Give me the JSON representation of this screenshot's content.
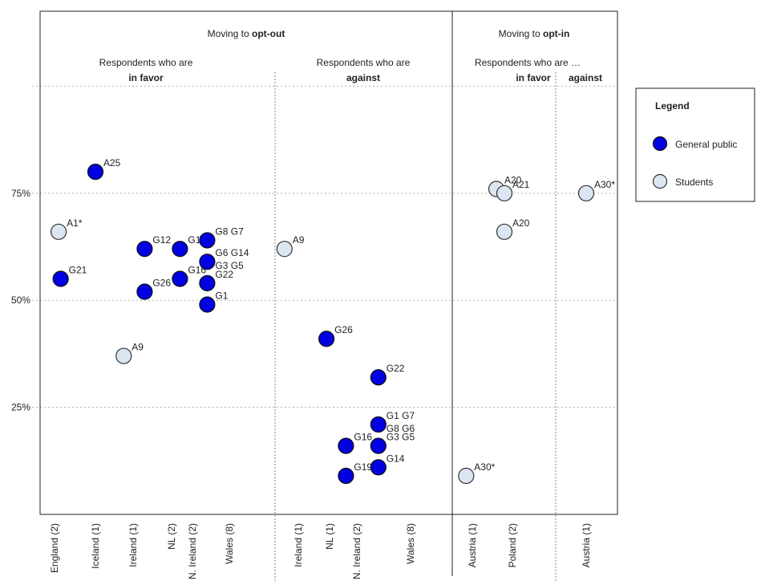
{
  "chart_data": {
    "type": "scatter",
    "y_ticks": [
      "25%",
      "50%",
      "75%"
    ],
    "ylim": [
      0,
      100
    ],
    "grid": true,
    "sections": [
      {
        "title_prefix": "Moving to ",
        "title_bold": "opt-out",
        "groups": [
          {
            "line1": "Respondents who are",
            "line2": "in favor"
          },
          {
            "line1": "Respondents who are",
            "line2": "against"
          }
        ]
      },
      {
        "title_prefix": "Moving to ",
        "title_bold": "opt-in",
        "groups": [
          {
            "line1": "Respondents who are …",
            "line2": "in favor"
          },
          {
            "line1": "",
            "line2": "against"
          }
        ]
      }
    ],
    "categories": [
      "England (2)",
      "Iceland (1)",
      "Ireland (1)",
      "NL (2)",
      "N. Ireland (2)",
      "Wales (8)",
      "Ireland (1)",
      "NL (1)",
      "N. Ireland (2)",
      "Wales (8)",
      "Austria (1)",
      "Poland (2)",
      "Austria (1)"
    ],
    "series": [
      {
        "name": "General public",
        "points": [
          {
            "pos": 0.15,
            "y": 55,
            "label": "G21"
          },
          {
            "pos": 1.0,
            "y": 80,
            "label": "A25"
          },
          {
            "pos": 2.3,
            "y": 62,
            "label": "G12"
          },
          {
            "pos": 2.3,
            "y": 52,
            "label": "G26"
          },
          {
            "pos": 3.4,
            "y": 62,
            "label": "G18"
          },
          {
            "pos": 3.4,
            "y": 55,
            "label": "G16"
          },
          {
            "pos": 4.4,
            "y": 64,
            "label": "G8 G7"
          },
          {
            "pos": 4.4,
            "y": 59,
            "label": "G6 G14 / G3 G5"
          },
          {
            "pos": 4.4,
            "y": 54,
            "label": "G22"
          },
          {
            "pos": 4.4,
            "y": 49,
            "label": "G1"
          },
          {
            "pos": 6.9,
            "y": 41,
            "label": "G26"
          },
          {
            "pos": 7.6,
            "y": 16,
            "label": "G16"
          },
          {
            "pos": 7.6,
            "y": 9,
            "label": "G19"
          },
          {
            "pos": 8.4,
            "y": 32,
            "label": "G22"
          },
          {
            "pos": 8.4,
            "y": 21,
            "label": "G1 G7 / G8 G6"
          },
          {
            "pos": 8.4,
            "y": 16,
            "label": "G3 G5"
          },
          {
            "pos": 8.4,
            "y": 11,
            "label": "G14"
          }
        ]
      },
      {
        "name": "Students",
        "points": [
          {
            "pos": 0.1,
            "y": 66,
            "label": "A1*"
          },
          {
            "pos": 1.75,
            "y": 37,
            "label": "A9"
          },
          {
            "pos": 5.8,
            "y": 62,
            "label": "A9"
          },
          {
            "pos": 9.9,
            "y": 9,
            "label": "A30*"
          },
          {
            "pos": 10.6,
            "y": 76,
            "label": "A20"
          },
          {
            "pos": 10.8,
            "y": 75,
            "label": "A21"
          },
          {
            "pos": 10.8,
            "y": 66,
            "label": "A20"
          },
          {
            "pos": 12.0,
            "y": 75,
            "label": "A30*"
          }
        ]
      }
    ]
  },
  "legend": {
    "title": "Legend",
    "items": [
      {
        "label": "General public",
        "color": "#0000e0"
      },
      {
        "label": "Students",
        "color": "#dce6f2"
      }
    ]
  }
}
